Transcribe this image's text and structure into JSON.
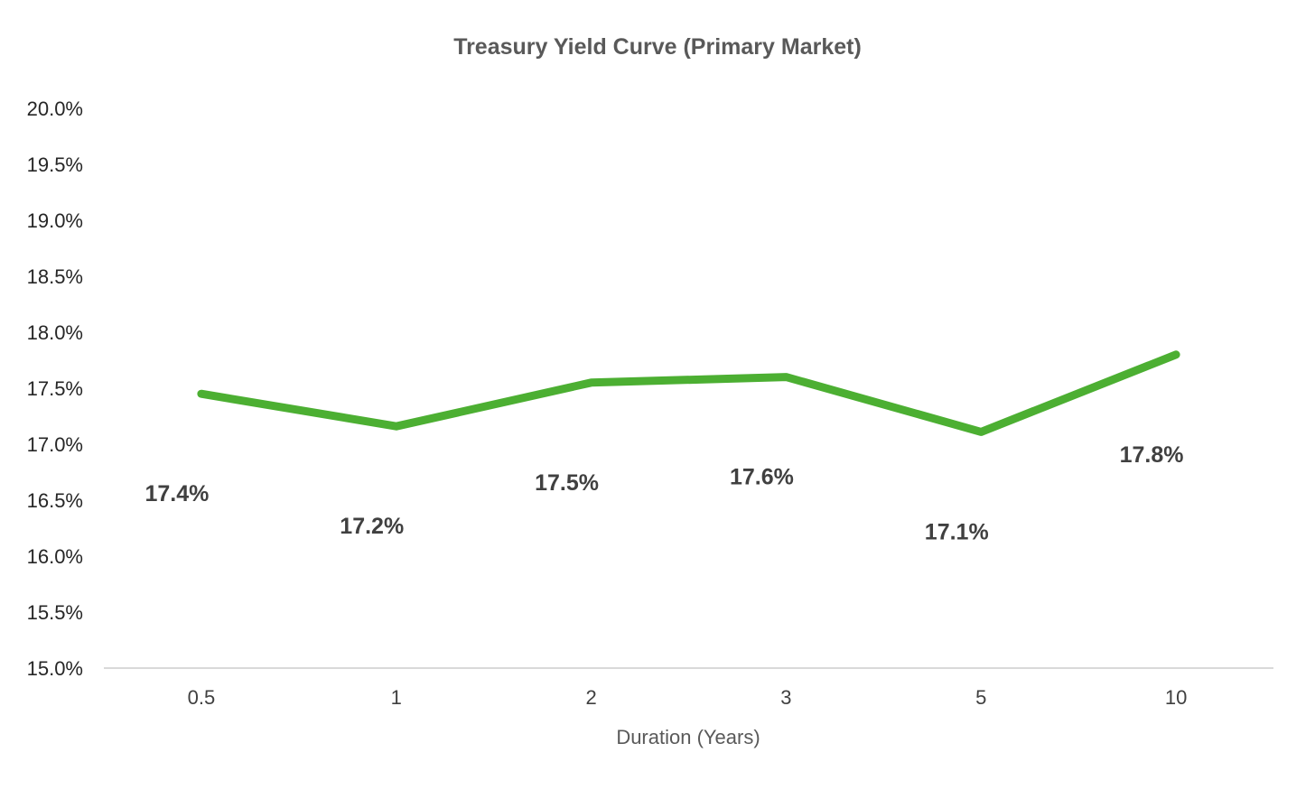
{
  "chart_data": {
    "type": "line",
    "title": "Treasury Yield Curve (Primary Market)",
    "xlabel": "Duration (Years)",
    "ylabel": "",
    "categories": [
      "0.5",
      "1",
      "2",
      "3",
      "5",
      "10"
    ],
    "series": [
      {
        "values": [
          17.45,
          17.16,
          17.55,
          17.6,
          17.11,
          17.8
        ],
        "data_labels": [
          "17.4%",
          "17.2%",
          "17.5%",
          "17.6%",
          "17.1%",
          "17.8%"
        ],
        "color": "#4caf32"
      }
    ],
    "y_ticks": [
      "15.0%",
      "15.5%",
      "16.0%",
      "16.5%",
      "17.0%",
      "17.5%",
      "18.0%",
      "18.5%",
      "19.0%",
      "19.5%",
      "20.0%"
    ],
    "ylim": [
      15.0,
      20.0
    ],
    "y_tick_step": 0.5,
    "grid": false,
    "legend": "none",
    "axis_color": "#d9d9d9"
  }
}
